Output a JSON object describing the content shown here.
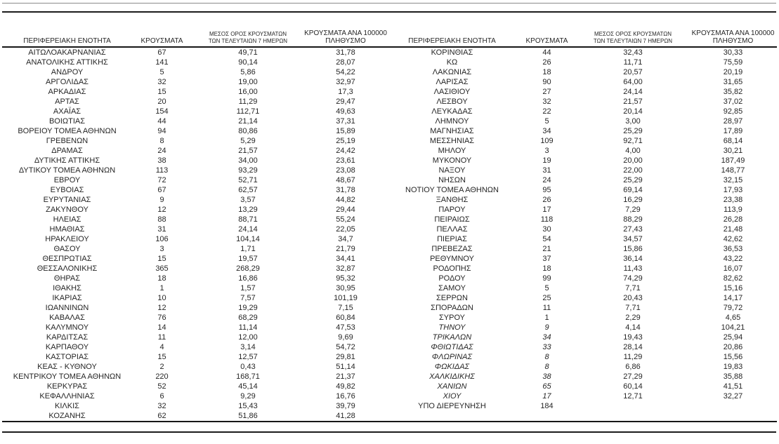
{
  "page": {
    "headers": {
      "region": "ΠΕΡΙΦΕΡΕΙΑΚΗ ΕΝΟΤΗΤΑ",
      "cases": "ΚΡΟΥΣΜΑΤΑ",
      "avg7_line1": "ΜΕΣΟΣ ΟΡΟΣ ΚΡΟΥΣΜΑΤΩΝ",
      "avg7_line2": "ΤΩΝ ΤΕΛΕΥΤΑΙΩΝ 7 ΗΜΕΡΩΝ",
      "per100k_line1": "ΚΡΟΥΣΜΑΤΑ ΑΝΑ 100000",
      "per100k_line2": "ΠΛΗΘΥΣΜΟ"
    },
    "text_color": "#262626",
    "rule_color": "#1c1c1c"
  },
  "table": {
    "left_rows": [
      {
        "region": "ΑΙΤΩΛΟΑΚΑΡΝΑΝΙΑΣ",
        "cases": "67",
        "avg7": "49,71",
        "per100k": "31,78",
        "italic": false
      },
      {
        "region": "ΑΝΑΤΟΛΙΚΗΣ ΑΤΤΙΚΗΣ",
        "cases": "141",
        "avg7": "90,14",
        "per100k": "28,07",
        "italic": false
      },
      {
        "region": "ΑΝΔΡΟΥ",
        "cases": "5",
        "avg7": "5,86",
        "per100k": "54,22",
        "italic": false
      },
      {
        "region": "ΑΡΓΟΛΙΔΑΣ",
        "cases": "32",
        "avg7": "19,00",
        "per100k": "32,97",
        "italic": false
      },
      {
        "region": "ΑΡΚΑΔΙΑΣ",
        "cases": "15",
        "avg7": "16,00",
        "per100k": "17,3",
        "italic": false
      },
      {
        "region": "ΑΡΤΑΣ",
        "cases": "20",
        "avg7": "11,29",
        "per100k": "29,47",
        "italic": false
      },
      {
        "region": "ΑΧΑΪΑΣ",
        "cases": "154",
        "avg7": "112,71",
        "per100k": "49,63",
        "italic": false
      },
      {
        "region": "ΒΟΙΩΤΙΑΣ",
        "cases": "44",
        "avg7": "21,14",
        "per100k": "37,31",
        "italic": false
      },
      {
        "region": "ΒΟΡΕΙΟΥ ΤΟΜΕΑ ΑΘΗΝΩΝ",
        "cases": "94",
        "avg7": "80,86",
        "per100k": "15,89",
        "italic": false
      },
      {
        "region": "ΓΡΕΒΕΝΩΝ",
        "cases": "8",
        "avg7": "5,29",
        "per100k": "25,19",
        "italic": false
      },
      {
        "region": "ΔΡΑΜΑΣ",
        "cases": "24",
        "avg7": "21,57",
        "per100k": "24,42",
        "italic": false
      },
      {
        "region": "ΔΥΤΙΚΗΣ ΑΤΤΙΚΗΣ",
        "cases": "38",
        "avg7": "34,00",
        "per100k": "23,61",
        "italic": false
      },
      {
        "region": "ΔΥΤΙΚΟΥ ΤΟΜΕΑ ΑΘΗΝΩΝ",
        "cases": "113",
        "avg7": "93,29",
        "per100k": "23,08",
        "italic": false
      },
      {
        "region": "ΕΒΡΟΥ",
        "cases": "72",
        "avg7": "52,71",
        "per100k": "48,67",
        "italic": false
      },
      {
        "region": "ΕΥΒΟΙΑΣ",
        "cases": "67",
        "avg7": "62,57",
        "per100k": "31,78",
        "italic": false
      },
      {
        "region": "ΕΥΡΥΤΑΝΙΑΣ",
        "cases": "9",
        "avg7": "3,57",
        "per100k": "44,82",
        "italic": false
      },
      {
        "region": "ΖΑΚΥΝΘΟΥ",
        "cases": "12",
        "avg7": "13,29",
        "per100k": "29,44",
        "italic": false
      },
      {
        "region": "ΗΛΕΙΑΣ",
        "cases": "88",
        "avg7": "88,71",
        "per100k": "55,24",
        "italic": false
      },
      {
        "region": "ΗΜΑΘΙΑΣ",
        "cases": "31",
        "avg7": "24,14",
        "per100k": "22,05",
        "italic": false
      },
      {
        "region": "ΗΡΑΚΛΕΙΟΥ",
        "cases": "106",
        "avg7": "104,14",
        "per100k": "34,7",
        "italic": false
      },
      {
        "region": "ΘΑΣΟΥ",
        "cases": "3",
        "avg7": "1,71",
        "per100k": "21,79",
        "italic": false
      },
      {
        "region": "ΘΕΣΠΡΩΤΙΑΣ",
        "cases": "15",
        "avg7": "19,57",
        "per100k": "34,41",
        "italic": false
      },
      {
        "region": "ΘΕΣΣΑΛΟΝΙΚΗΣ",
        "cases": "365",
        "avg7": "268,29",
        "per100k": "32,87",
        "italic": false
      },
      {
        "region": "ΘΗΡΑΣ",
        "cases": "18",
        "avg7": "16,86",
        "per100k": "95,32",
        "italic": false
      },
      {
        "region": "ΙΘΑΚΗΣ",
        "cases": "1",
        "avg7": "1,57",
        "per100k": "30,95",
        "italic": false
      },
      {
        "region": "ΙΚΑΡΙΑΣ",
        "cases": "10",
        "avg7": "7,57",
        "per100k": "101,19",
        "italic": false
      },
      {
        "region": "ΙΩΑΝΝΙΝΩΝ",
        "cases": "12",
        "avg7": "19,29",
        "per100k": "7,15",
        "italic": false
      },
      {
        "region": "ΚΑΒΑΛΑΣ",
        "cases": "76",
        "avg7": "68,29",
        "per100k": "60,84",
        "italic": false
      },
      {
        "region": "ΚΑΛΥΜΝΟΥ",
        "cases": "14",
        "avg7": "11,14",
        "per100k": "47,53",
        "italic": false
      },
      {
        "region": "ΚΑΡΔΙΤΣΑΣ",
        "cases": "11",
        "avg7": "12,00",
        "per100k": "9,69",
        "italic": false
      },
      {
        "region": "ΚΑΡΠΑΘΟΥ",
        "cases": "4",
        "avg7": "3,14",
        "per100k": "54,72",
        "italic": false
      },
      {
        "region": "ΚΑΣΤΟΡΙΑΣ",
        "cases": "15",
        "avg7": "12,57",
        "per100k": "29,81",
        "italic": false
      },
      {
        "region": "ΚΕΑΣ - ΚΥΘΝΟΥ",
        "cases": "2",
        "avg7": "0,43",
        "per100k": "51,14",
        "italic": false
      },
      {
        "region": "ΚΕΝΤΡΙΚΟΥ ΤΟΜΕΑ ΑΘΗΝΩΝ",
        "cases": "220",
        "avg7": "168,71",
        "per100k": "21,37",
        "italic": false
      },
      {
        "region": "ΚΕΡΚΥΡΑΣ",
        "cases": "52",
        "avg7": "45,14",
        "per100k": "49,82",
        "italic": false
      },
      {
        "region": "ΚΕΦΑΛΛΗΝΙΑΣ",
        "cases": "6",
        "avg7": "9,29",
        "per100k": "16,76",
        "italic": false
      },
      {
        "region": "ΚΙΛΚΙΣ",
        "cases": "32",
        "avg7": "15,43",
        "per100k": "39,79",
        "italic": false
      },
      {
        "region": "ΚΟΖΑΝΗΣ",
        "cases": "62",
        "avg7": "51,86",
        "per100k": "41,28",
        "italic": false
      }
    ],
    "right_rows": [
      {
        "region": "ΚΟΡΙΝΘΙΑΣ",
        "cases": "44",
        "avg7": "32,43",
        "per100k": "30,33",
        "italic": false
      },
      {
        "region": "ΚΩ",
        "cases": "26",
        "avg7": "11,71",
        "per100k": "75,59",
        "italic": false
      },
      {
        "region": "ΛΑΚΩΝΙΑΣ",
        "cases": "18",
        "avg7": "20,57",
        "per100k": "20,19",
        "italic": false
      },
      {
        "region": "ΛΑΡΙΣΑΣ",
        "cases": "90",
        "avg7": "64,00",
        "per100k": "31,65",
        "italic": false
      },
      {
        "region": "ΛΑΣΙΘΙΟΥ",
        "cases": "27",
        "avg7": "24,14",
        "per100k": "35,82",
        "italic": false
      },
      {
        "region": "ΛΕΣΒΟΥ",
        "cases": "32",
        "avg7": "21,57",
        "per100k": "37,02",
        "italic": false
      },
      {
        "region": "ΛΕΥΚΑΔΑΣ",
        "cases": "22",
        "avg7": "20,14",
        "per100k": "92,85",
        "italic": false
      },
      {
        "region": "ΛΗΜΝΟΥ",
        "cases": "5",
        "avg7": "3,00",
        "per100k": "28,97",
        "italic": false
      },
      {
        "region": "ΜΑΓΝΗΣΙΑΣ",
        "cases": "34",
        "avg7": "25,29",
        "per100k": "17,89",
        "italic": false
      },
      {
        "region": "ΜΕΣΣΗΝΙΑΣ",
        "cases": "109",
        "avg7": "92,71",
        "per100k": "68,14",
        "italic": false
      },
      {
        "region": "ΜΗΛΟΥ",
        "cases": "3",
        "avg7": "4,00",
        "per100k": "30,21",
        "italic": false
      },
      {
        "region": "ΜΥΚΟΝΟΥ",
        "cases": "19",
        "avg7": "20,00",
        "per100k": "187,49",
        "italic": false
      },
      {
        "region": "ΝΑΞΟΥ",
        "cases": "31",
        "avg7": "22,00",
        "per100k": "148,77",
        "italic": false
      },
      {
        "region": "ΝΗΣΩΝ",
        "cases": "24",
        "avg7": "25,29",
        "per100k": "32,15",
        "italic": false
      },
      {
        "region": "ΝΟΤΙΟΥ ΤΟΜΕΑ ΑΘΗΝΩΝ",
        "cases": "95",
        "avg7": "69,14",
        "per100k": "17,93",
        "italic": false
      },
      {
        "region": "ΞΑΝΘΗΣ",
        "cases": "26",
        "avg7": "16,29",
        "per100k": "23,38",
        "italic": false
      },
      {
        "region": "ΠΑΡΟΥ",
        "cases": "17",
        "avg7": "7,29",
        "per100k": "113,9",
        "italic": false
      },
      {
        "region": "ΠΕΙΡΑΙΩΣ",
        "cases": "118",
        "avg7": "88,29",
        "per100k": "26,28",
        "italic": false
      },
      {
        "region": "ΠΕΛΛΑΣ",
        "cases": "30",
        "avg7": "27,43",
        "per100k": "21,48",
        "italic": false
      },
      {
        "region": "ΠΙΕΡΙΑΣ",
        "cases": "54",
        "avg7": "34,57",
        "per100k": "42,62",
        "italic": false
      },
      {
        "region": "ΠΡΕΒΕΖΑΣ",
        "cases": "21",
        "avg7": "15,86",
        "per100k": "36,53",
        "italic": false
      },
      {
        "region": "ΡΕΘΥΜΝΟΥ",
        "cases": "37",
        "avg7": "36,14",
        "per100k": "43,22",
        "italic": false
      },
      {
        "region": "ΡΟΔΟΠΗΣ",
        "cases": "18",
        "avg7": "11,43",
        "per100k": "16,07",
        "italic": false
      },
      {
        "region": "ΡΟΔΟΥ",
        "cases": "99",
        "avg7": "74,29",
        "per100k": "82,62",
        "italic": false
      },
      {
        "region": "ΣΑΜΟΥ",
        "cases": "5",
        "avg7": "7,71",
        "per100k": "15,16",
        "italic": false
      },
      {
        "region": "ΣΕΡΡΩΝ",
        "cases": "25",
        "avg7": "20,43",
        "per100k": "14,17",
        "italic": false
      },
      {
        "region": "ΣΠΟΡΑΔΩΝ",
        "cases": "11",
        "avg7": "7,71",
        "per100k": "79,72",
        "italic": false
      },
      {
        "region": "ΣΥΡΟΥ",
        "cases": "1",
        "avg7": "2,29",
        "per100k": "4,65",
        "italic": false
      },
      {
        "region": "ΤΗΝΟΥ",
        "cases": "9",
        "avg7": "4,14",
        "per100k": "104,21",
        "italic": true
      },
      {
        "region": "ΤΡΙΚΑΛΩΝ",
        "cases": "34",
        "avg7": "19,43",
        "per100k": "25,94",
        "italic": true
      },
      {
        "region": "ΦΘΙΩΤΙΔΑΣ",
        "cases": "33",
        "avg7": "28,14",
        "per100k": "20,86",
        "italic": true
      },
      {
        "region": "ΦΛΩΡΙΝΑΣ",
        "cases": "8",
        "avg7": "11,29",
        "per100k": "15,56",
        "italic": true
      },
      {
        "region": "ΦΩΚΙΔΑΣ",
        "cases": "8",
        "avg7": "6,86",
        "per100k": "19,83",
        "italic": true
      },
      {
        "region": "ΧΑΛΚΙΔΙΚΗΣ",
        "cases": "38",
        "avg7": "27,29",
        "per100k": "35,88",
        "italic": true
      },
      {
        "region": "ΧΑΝΙΩΝ",
        "cases": "65",
        "avg7": "60,14",
        "per100k": "41,51",
        "italic": true
      },
      {
        "region": "ΧΙΟΥ",
        "cases": "17",
        "avg7": "12,71",
        "per100k": "32,27",
        "italic": true
      },
      {
        "region": "ΥΠΟ ΔΙΕΡΕΥΝΗΣΗ",
        "cases": "184",
        "avg7": "",
        "per100k": "",
        "italic": false
      }
    ]
  }
}
